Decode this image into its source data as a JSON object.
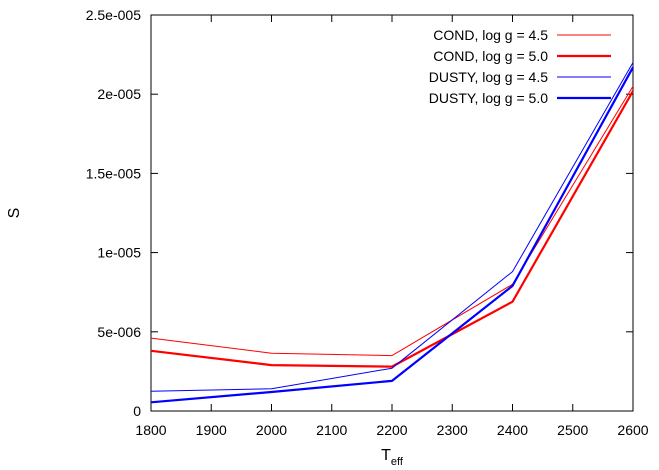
{
  "chart_data": {
    "type": "line",
    "xlabel": "T",
    "xlabel_subscript": "eff",
    "ylabel": "S",
    "xlim": [
      1800,
      2600
    ],
    "ylim": [
      0,
      2.5e-05
    ],
    "x_ticks": [
      1800,
      1900,
      2000,
      2100,
      2200,
      2300,
      2400,
      2500,
      2600
    ],
    "y_ticks": [
      0,
      5e-06,
      1e-05,
      1.5e-05,
      2e-05,
      2.5e-05
    ],
    "x_tick_labels": [
      "1800",
      "1900",
      "2000",
      "2100",
      "2200",
      "2300",
      "2400",
      "2500",
      "2600"
    ],
    "y_tick_labels": [
      "0",
      "5e-006",
      "1e-005",
      "1.5e-005",
      "2e-005",
      "2.5e-005"
    ],
    "grid": false,
    "legend_position": "top-right",
    "x": [
      1800,
      2000,
      2200,
      2400,
      2600
    ],
    "series": [
      {
        "name": "COND, log g = 4.5",
        "color": "#ff0000",
        "width": "thin",
        "values": [
          4.6e-06,
          3.65e-06,
          3.5e-06,
          8e-06,
          2.05e-05
        ]
      },
      {
        "name": "COND, log g = 5.0",
        "color": "#ff0000",
        "width": "thick",
        "values": [
          3.8e-06,
          2.9e-06,
          2.8e-06,
          6.9e-06,
          2.02e-05
        ]
      },
      {
        "name": "DUSTY, log g = 4.5",
        "color": "#0000ff",
        "width": "thin",
        "values": [
          1.25e-06,
          1.4e-06,
          2.7e-06,
          8.8e-06,
          2.2e-05
        ]
      },
      {
        "name": "DUSTY, log g = 5.0",
        "color": "#0000ff",
        "width": "thick",
        "values": [
          5.5e-07,
          1.2e-06,
          1.9e-06,
          7.9e-06,
          2.17e-05
        ]
      }
    ]
  }
}
